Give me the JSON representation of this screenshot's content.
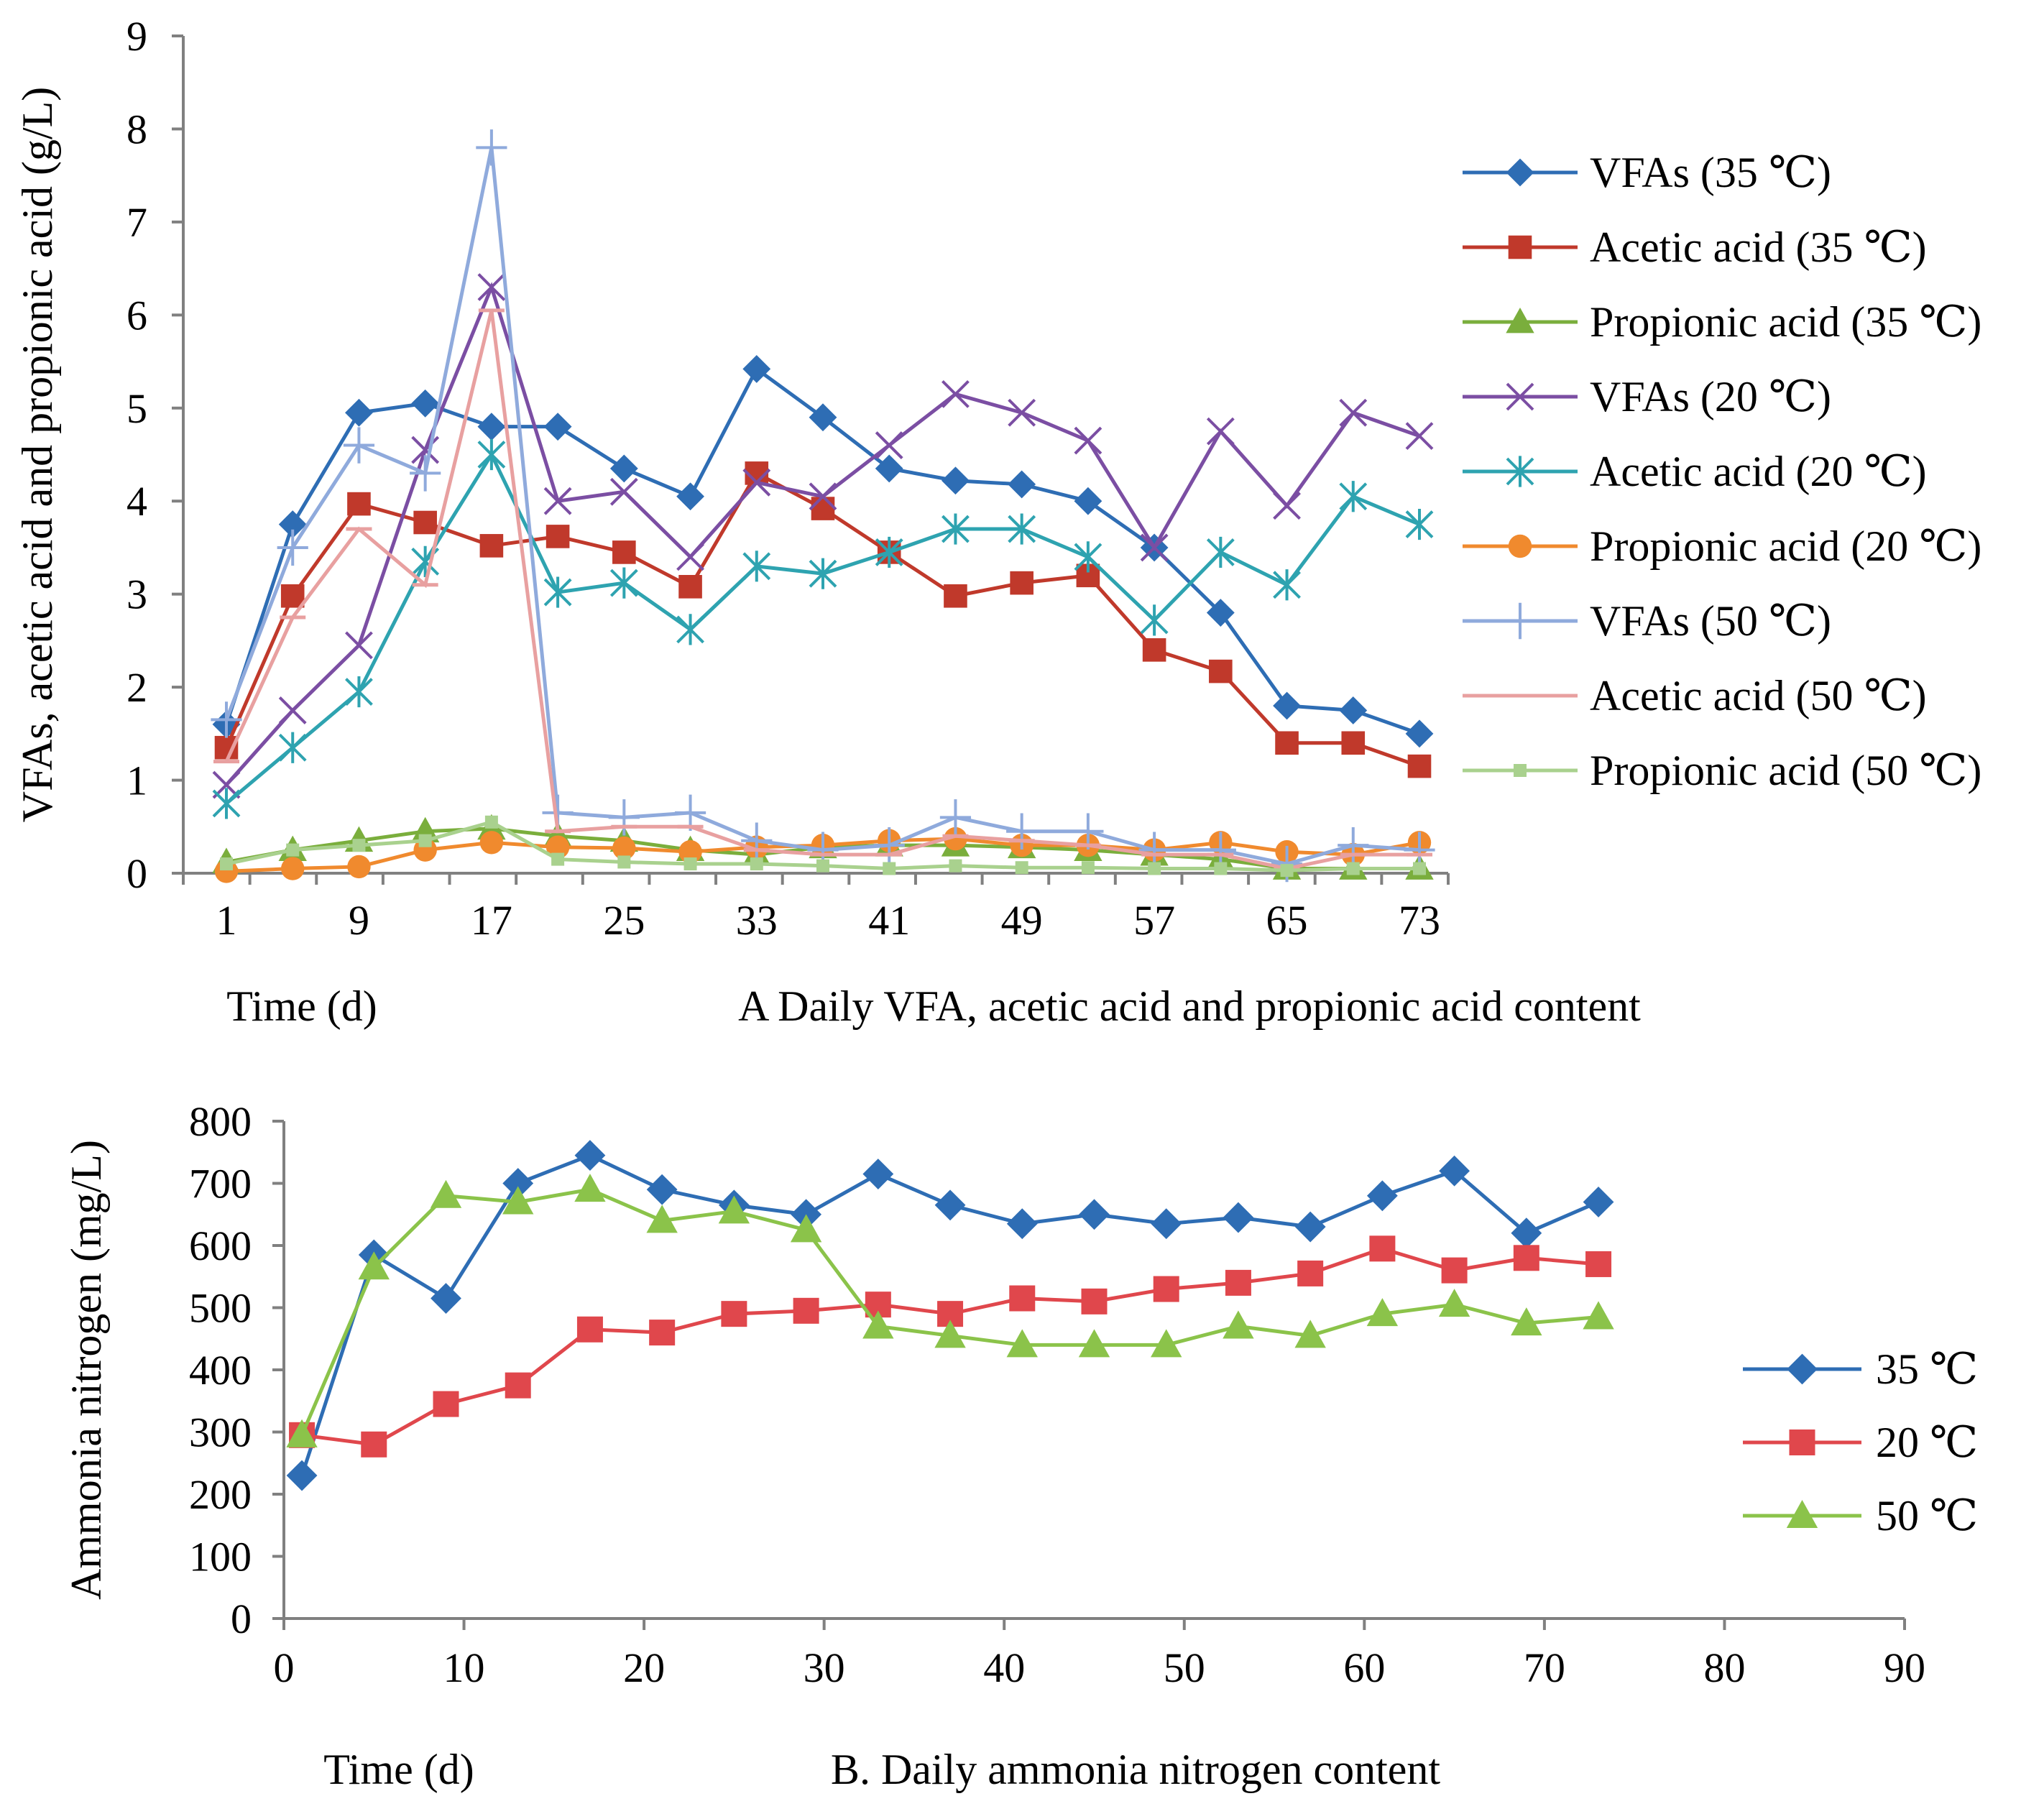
{
  "chart_data": [
    {
      "id": "A",
      "type": "line",
      "title": "A  Daily VFA, acetic acid and propionic acid content",
      "xlabel": "Time (d)",
      "ylabel": "VFAs, acetic acid and propionic acid (g/L)",
      "ylim": [
        0,
        9
      ],
      "yticks": [
        0,
        1,
        2,
        3,
        4,
        5,
        6,
        7,
        8,
        9
      ],
      "xticks": [
        1,
        9,
        17,
        25,
        33,
        41,
        49,
        57,
        65,
        73
      ],
      "legend_position": "right",
      "grid": false,
      "series": [
        {
          "name": "VFAs (35 ℃)",
          "color": "#2E6DB4",
          "marker": "diamond",
          "x": [
            1,
            5,
            9,
            13,
            17,
            21,
            25,
            29,
            33,
            37,
            41,
            45,
            49,
            53,
            57,
            61,
            65,
            69,
            73
          ],
          "values": [
            1.6,
            3.75,
            4.95,
            5.05,
            4.8,
            4.8,
            4.35,
            4.05,
            5.42,
            4.9,
            4.35,
            4.22,
            4.18,
            4.0,
            3.5,
            2.8,
            1.8,
            1.75,
            1.5
          ]
        },
        {
          "name": "Acetic acid (35 ℃)",
          "color": "#C0392B",
          "marker": "square",
          "x": [
            1,
            5,
            9,
            13,
            17,
            21,
            25,
            29,
            33,
            37,
            41,
            45,
            49,
            53,
            57,
            61,
            65,
            69,
            73
          ],
          "values": [
            1.35,
            2.98,
            3.97,
            3.77,
            3.52,
            3.62,
            3.45,
            3.08,
            4.3,
            3.92,
            3.45,
            2.98,
            3.12,
            3.2,
            2.4,
            2.17,
            1.4,
            1.4,
            1.15
          ]
        },
        {
          "name": "Propionic acid (35 ℃)",
          "color": "#7AAE3C",
          "marker": "triangle",
          "x": [
            1,
            5,
            9,
            13,
            17,
            21,
            25,
            29,
            33,
            37,
            41,
            45,
            49,
            53,
            57,
            61,
            65,
            69,
            73
          ],
          "values": [
            0.12,
            0.25,
            0.35,
            0.45,
            0.48,
            0.4,
            0.35,
            0.25,
            0.2,
            0.28,
            0.3,
            0.3,
            0.28,
            0.25,
            0.2,
            0.15,
            0.05,
            0.05,
            0.05
          ]
        },
        {
          "name": "VFAs (20 ℃)",
          "color": "#7B4EA3",
          "marker": "x",
          "x": [
            1,
            5,
            9,
            13,
            17,
            21,
            25,
            29,
            33,
            37,
            41,
            45,
            49,
            53,
            57,
            61,
            65,
            69,
            73
          ],
          "values": [
            0.95,
            1.75,
            2.45,
            4.55,
            6.3,
            4.0,
            4.1,
            3.4,
            4.2,
            4.05,
            4.6,
            5.15,
            4.95,
            4.65,
            3.5,
            4.75,
            3.95,
            4.95,
            4.7
          ]
        },
        {
          "name": "Acetic acid (20 ℃)",
          "color": "#2EA3B0",
          "marker": "asterisk",
          "x": [
            1,
            5,
            9,
            13,
            17,
            21,
            25,
            29,
            33,
            37,
            41,
            45,
            49,
            53,
            57,
            61,
            65,
            69,
            73
          ],
          "values": [
            0.75,
            1.35,
            1.95,
            3.35,
            4.5,
            3.02,
            3.12,
            2.62,
            3.3,
            3.22,
            3.45,
            3.7,
            3.7,
            3.4,
            2.72,
            3.45,
            3.1,
            4.05,
            3.75
          ]
        },
        {
          "name": "Propionic acid (20 ℃)",
          "color": "#F08A2E",
          "marker": "circle",
          "x": [
            1,
            5,
            9,
            13,
            17,
            21,
            25,
            29,
            33,
            37,
            41,
            45,
            49,
            53,
            57,
            61,
            65,
            69,
            73
          ],
          "values": [
            0.02,
            0.05,
            0.07,
            0.25,
            0.33,
            0.28,
            0.27,
            0.23,
            0.28,
            0.3,
            0.35,
            0.37,
            0.3,
            0.3,
            0.25,
            0.33,
            0.23,
            0.2,
            0.33
          ]
        },
        {
          "name": "VFAs (50 ℃)",
          "color": "#8FAADC",
          "marker": "plus",
          "x": [
            1,
            5,
            9,
            13,
            17,
            21,
            25,
            29,
            33,
            37,
            41,
            45,
            49,
            53,
            57,
            61,
            65,
            69,
            73
          ],
          "values": [
            1.65,
            3.5,
            4.6,
            4.3,
            7.8,
            0.65,
            0.6,
            0.65,
            0.35,
            0.25,
            0.3,
            0.6,
            0.45,
            0.45,
            0.25,
            0.25,
            0.1,
            0.3,
            0.25
          ]
        },
        {
          "name": "Acetic acid (50 ℃)",
          "color": "#E8A0A0",
          "marker": "dash",
          "x": [
            1,
            5,
            9,
            13,
            17,
            21,
            25,
            29,
            33,
            37,
            41,
            45,
            49,
            53,
            57,
            61,
            65,
            69,
            73
          ],
          "values": [
            1.2,
            2.75,
            3.7,
            3.1,
            6.05,
            0.45,
            0.5,
            0.5,
            0.25,
            0.2,
            0.2,
            0.4,
            0.35,
            0.3,
            0.2,
            0.2,
            0.05,
            0.2,
            0.2
          ]
        },
        {
          "name": "Propionic acid (50 ℃)",
          "color": "#A9D18E",
          "marker": "smallsquare",
          "x": [
            1,
            5,
            9,
            13,
            17,
            21,
            25,
            29,
            33,
            37,
            41,
            45,
            49,
            53,
            57,
            61,
            65,
            69,
            73
          ],
          "values": [
            0.1,
            0.25,
            0.3,
            0.35,
            0.55,
            0.15,
            0.12,
            0.1,
            0.1,
            0.08,
            0.05,
            0.08,
            0.06,
            0.06,
            0.05,
            0.05,
            0.03,
            0.05,
            0.05
          ]
        }
      ]
    },
    {
      "id": "B",
      "type": "line",
      "title": "B. Daily ammonia nitrogen content",
      "xlabel": "Time (d)",
      "ylabel": "Ammonia nitrogen (mg/L)",
      "xlim": [
        0,
        90
      ],
      "ylim": [
        0,
        800
      ],
      "xticks": [
        0,
        10,
        20,
        30,
        40,
        50,
        60,
        70,
        80,
        90
      ],
      "yticks": [
        0,
        100,
        200,
        300,
        400,
        500,
        600,
        700,
        800
      ],
      "legend_position": "right",
      "grid": false,
      "series": [
        {
          "name": "35 ℃",
          "color": "#2E6DB4",
          "marker": "diamond",
          "x": [
            1,
            5,
            9,
            13,
            17,
            21,
            25,
            29,
            33,
            37,
            41,
            45,
            49,
            53,
            57,
            61,
            65,
            69,
            73
          ],
          "values": [
            230,
            585,
            515,
            700,
            745,
            690,
            665,
            650,
            715,
            665,
            635,
            650,
            635,
            645,
            630,
            680,
            720,
            620,
            670
          ]
        },
        {
          "name": "20 ℃",
          "color": "#E0474C",
          "marker": "square",
          "x": [
            1,
            5,
            9,
            13,
            17,
            21,
            25,
            29,
            33,
            37,
            41,
            45,
            49,
            53,
            57,
            61,
            65,
            69,
            73
          ],
          "values": [
            295,
            280,
            345,
            375,
            465,
            460,
            490,
            495,
            505,
            490,
            515,
            510,
            530,
            540,
            555,
            595,
            560,
            580,
            570
          ]
        },
        {
          "name": "50 ℃",
          "color": "#8BC34A",
          "marker": "triangle",
          "x": [
            1,
            5,
            9,
            13,
            17,
            21,
            25,
            29,
            33,
            37,
            41,
            45,
            49,
            53,
            57,
            61,
            65,
            69,
            73
          ],
          "values": [
            295,
            565,
            680,
            670,
            690,
            640,
            655,
            625,
            470,
            455,
            440,
            440,
            440,
            470,
            455,
            490,
            505,
            475,
            485
          ]
        }
      ]
    }
  ]
}
